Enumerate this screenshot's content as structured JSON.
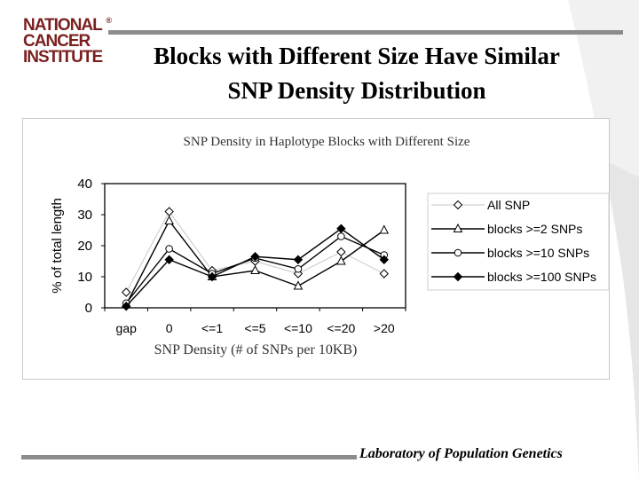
{
  "logo": {
    "line1": "NATIONAL",
    "line2": "CANCER",
    "line3": "INSTITUTE",
    "reg": "®"
  },
  "slide": {
    "title_line1": "Blocks with Different Size Have Similar",
    "title_line2": "SNP Density Distribution",
    "footer": "Laboratory of Population Genetics"
  },
  "colors": {
    "logo": "#7a1f1f",
    "rule": "#8c8c8c",
    "swoosh": "#e6e6e6"
  },
  "chart_data": {
    "type": "line",
    "title": "SNP Density in Haplotype Blocks with Different Size",
    "xlabel": "SNP Density (# of SNPs per 10KB)",
    "ylabel": "% of total length",
    "categories": [
      "gap",
      "0",
      "<=1",
      "<=5",
      "<=10",
      "<=20",
      ">20"
    ],
    "ylim": [
      0,
      40
    ],
    "yticks": [
      0,
      10,
      20,
      30,
      40
    ],
    "grid": false,
    "legend": "right",
    "series": [
      {
        "name": "All SNP",
        "marker": "diamond",
        "values": [
          5,
          31,
          12,
          15,
          11,
          18,
          11
        ]
      },
      {
        "name": "blocks >=2 SNPs",
        "marker": "triangle",
        "values": [
          1,
          28,
          10,
          12,
          7,
          15,
          25
        ]
      },
      {
        "name": "blocks >=10 SNPs",
        "marker": "circle",
        "values": [
          1.5,
          19,
          11,
          16,
          12.5,
          23,
          17
        ]
      },
      {
        "name": "blocks >=100 SNPs",
        "marker": "filled-diamond",
        "values": [
          0.5,
          15.5,
          10,
          16.5,
          15.5,
          25.5,
          15.5
        ]
      }
    ]
  }
}
